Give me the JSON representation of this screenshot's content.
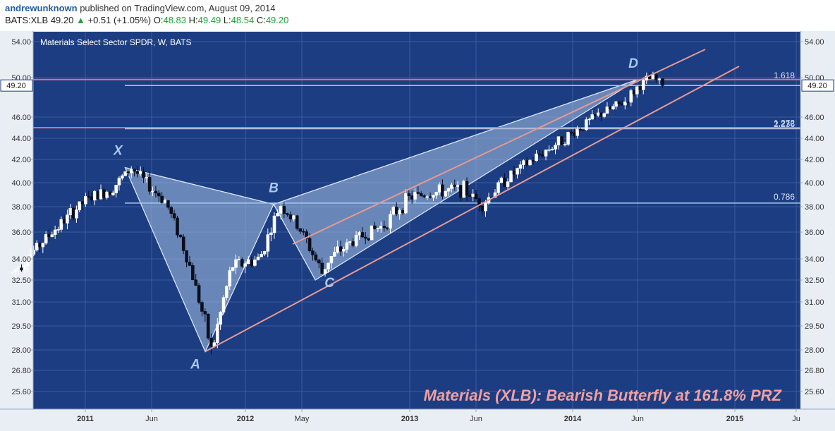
{
  "header": {
    "username": "andrewunknown",
    "published_text": "published on TradingView.com, August 09, 2014",
    "symbol": "BATS:XLB",
    "last": "49.20",
    "change_arrow": "▲",
    "change": "+0.51 (+1.05%)",
    "o_label": "O:",
    "o_value": "48.83",
    "h_label": "H:",
    "h_value": "49.49",
    "l_label": "L:",
    "l_value": "48.54",
    "c_label": "C:",
    "c_value": "49.20"
  },
  "chart_data": {
    "type": "candlestick",
    "title": "Materials Select Sector SPDR, W, BATS",
    "annotation": "Materials (XLB): Bearish Butterfly at 161.8% PRZ",
    "y_ticks": [
      "54.00",
      "50.00",
      "46.00",
      "44.00",
      "42.00",
      "40.00",
      "38.00",
      "36.00",
      "34.00",
      "32.50",
      "31.00",
      "29.50",
      "28.00",
      "26.80",
      "25.60"
    ],
    "y_values": [
      54,
      50,
      46,
      44,
      42,
      40,
      38,
      36,
      34,
      32.5,
      31,
      29.5,
      28,
      26.8,
      25.6
    ],
    "x_ticks": [
      "2011",
      "Jun",
      "2012",
      "May",
      "2013",
      "Jun",
      "2014",
      "Jun",
      "2015",
      "Ju"
    ],
    "price_label": "49.20",
    "pattern_points": [
      {
        "label": "X",
        "date": "2011-04",
        "price": 41.3
      },
      {
        "label": "A",
        "date": "2011-10",
        "price": 27.9
      },
      {
        "label": "B",
        "date": "2012-03",
        "price": 38.2
      },
      {
        "label": "C",
        "date": "2012-06",
        "price": 32.5
      },
      {
        "label": "D",
        "date": "2014-06",
        "price": 49.8
      }
    ],
    "fib_levels": [
      {
        "label": "1.618",
        "price": 49.8
      },
      {
        "label": "2.236",
        "price": 45.0
      },
      {
        "label": "1.272",
        "price": 44.9
      },
      {
        "label": "0.786",
        "price": 38.3
      }
    ],
    "colors": {
      "background": "#1c3d82",
      "grid": "#3a5a9c",
      "pattern_line": "#d7e3f3",
      "pattern_fill": "#a9c2e6",
      "channel": "#e59a94",
      "horizontal_red": "#e66f6f",
      "horizontal_blue": "#a8c8f0",
      "bull_candle": "#ffffff",
      "bear_candle": "#0a0f1e",
      "annotation": "#f0a0a0"
    }
  }
}
